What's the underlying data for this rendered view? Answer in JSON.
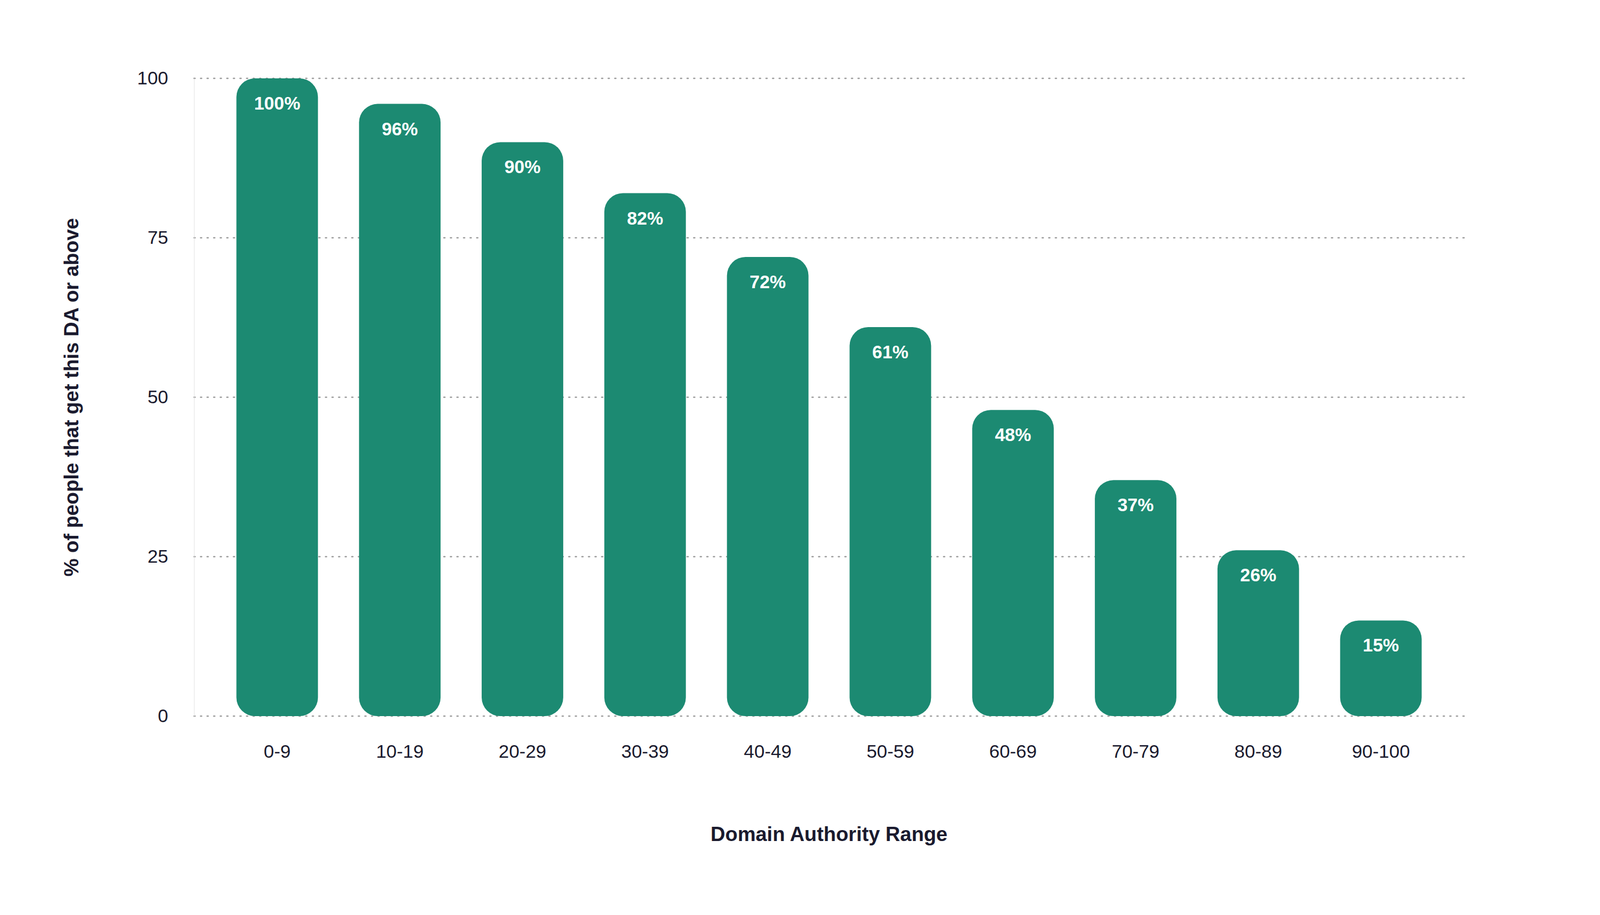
{
  "chart_data": {
    "type": "bar",
    "x_label": "Domain Authority Range",
    "y_label": "% of people that get this DA or above",
    "categories": [
      "0-9",
      "10-19",
      "20-29",
      "30-39",
      "40-49",
      "50-59",
      "60-69",
      "70-79",
      "80-89",
      "90-100"
    ],
    "values": [
      100,
      96,
      90,
      82,
      72,
      61,
      48,
      37,
      26,
      15
    ],
    "value_labels": [
      "100%",
      "96%",
      "90%",
      "82%",
      "72%",
      "61%",
      "48%",
      "37%",
      "26%",
      "15%"
    ],
    "color": "#1c8a72",
    "ylim": [
      0,
      100
    ],
    "yticks": [
      0,
      25,
      50,
      75,
      100
    ],
    "grid": true,
    "data_labels": true
  }
}
